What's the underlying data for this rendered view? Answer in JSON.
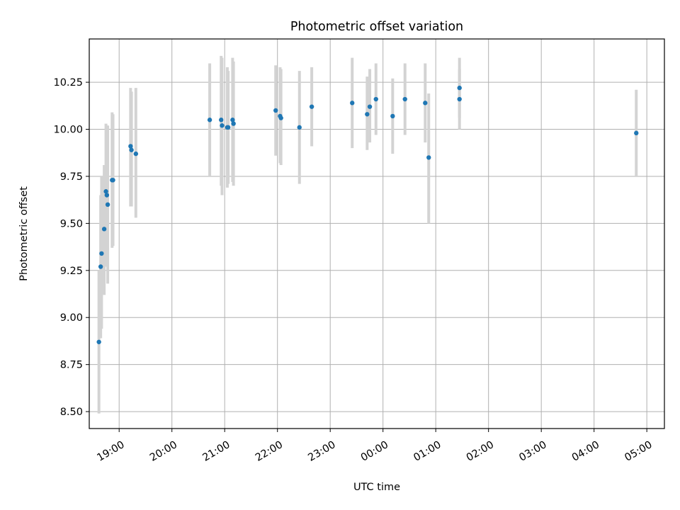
{
  "chart_data": {
    "type": "scatter",
    "title": "Photometric offset variation",
    "xlabel": "UTC time",
    "ylabel": "Photometric offset",
    "xlim": [
      "18:26",
      "05:20"
    ],
    "ylim": [
      8.41,
      10.48
    ],
    "x_ticks": [
      "19:00",
      "20:00",
      "21:00",
      "22:00",
      "23:00",
      "00:00",
      "01:00",
      "02:00",
      "03:00",
      "04:00",
      "05:00"
    ],
    "y_ticks": [
      "8.50",
      "8.75",
      "9.00",
      "9.25",
      "9.50",
      "9.75",
      "10.00",
      "10.25"
    ],
    "grid": true,
    "marker_color": "#1f77b4",
    "errorbar_color": "#d3d3d3",
    "points": [
      {
        "x": "18:37",
        "y": 8.87,
        "ylow": 8.49,
        "yhigh": 9.25
      },
      {
        "x": "18:39",
        "y": 9.27,
        "ylow": 8.89,
        "yhigh": 9.65
      },
      {
        "x": "18:40",
        "y": 9.34,
        "ylow": 8.94,
        "yhigh": 9.75
      },
      {
        "x": "18:43",
        "y": 9.47,
        "ylow": 9.12,
        "yhigh": 9.81
      },
      {
        "x": "18:45",
        "y": 9.67,
        "ylow": 9.31,
        "yhigh": 10.03
      },
      {
        "x": "18:46",
        "y": 9.65,
        "ylow": 9.27,
        "yhigh": 10.02
      },
      {
        "x": "18:47",
        "y": 9.6,
        "ylow": 9.18,
        "yhigh": 10.02
      },
      {
        "x": "18:52",
        "y": 9.73,
        "ylow": 9.37,
        "yhigh": 10.09
      },
      {
        "x": "18:53",
        "y": 9.73,
        "ylow": 9.38,
        "yhigh": 10.08
      },
      {
        "x": "19:13",
        "y": 9.91,
        "ylow": 9.59,
        "yhigh": 10.22
      },
      {
        "x": "19:14",
        "y": 9.89,
        "ylow": 9.59,
        "yhigh": 10.2
      },
      {
        "x": "19:19",
        "y": 9.87,
        "ylow": 9.53,
        "yhigh": 10.22
      },
      {
        "x": "20:43",
        "y": 10.05,
        "ylow": 9.75,
        "yhigh": 10.35
      },
      {
        "x": "20:56",
        "y": 10.05,
        "ylow": 9.7,
        "yhigh": 10.39
      },
      {
        "x": "20:57",
        "y": 10.02,
        "ylow": 9.65,
        "yhigh": 10.38
      },
      {
        "x": "21:03",
        "y": 10.01,
        "ylow": 9.69,
        "yhigh": 10.33
      },
      {
        "x": "21:04",
        "y": 10.01,
        "ylow": 9.71,
        "yhigh": 10.31
      },
      {
        "x": "21:09",
        "y": 10.05,
        "ylow": 9.72,
        "yhigh": 10.38
      },
      {
        "x": "21:10",
        "y": 10.03,
        "ylow": 9.7,
        "yhigh": 10.36
      },
      {
        "x": "21:58",
        "y": 10.1,
        "ylow": 9.86,
        "yhigh": 10.34
      },
      {
        "x": "22:03",
        "y": 10.07,
        "ylow": 9.82,
        "yhigh": 10.33
      },
      {
        "x": "22:04",
        "y": 10.06,
        "ylow": 9.81,
        "yhigh": 10.32
      },
      {
        "x": "22:25",
        "y": 10.01,
        "ylow": 9.71,
        "yhigh": 10.31
      },
      {
        "x": "22:39",
        "y": 10.12,
        "ylow": 9.91,
        "yhigh": 10.33
      },
      {
        "x": "23:25",
        "y": 10.14,
        "ylow": 9.9,
        "yhigh": 10.38
      },
      {
        "x": "23:42",
        "y": 10.08,
        "ylow": 9.89,
        "yhigh": 10.28
      },
      {
        "x": "23:45",
        "y": 10.12,
        "ylow": 9.93,
        "yhigh": 10.32
      },
      {
        "x": "23:52",
        "y": 10.16,
        "ylow": 9.97,
        "yhigh": 10.35
      },
      {
        "x": "00:11",
        "y": 10.07,
        "ylow": 9.87,
        "yhigh": 10.27
      },
      {
        "x": "00:25",
        "y": 10.16,
        "ylow": 9.97,
        "yhigh": 10.35
      },
      {
        "x": "00:48",
        "y": 10.14,
        "ylow": 9.93,
        "yhigh": 10.35
      },
      {
        "x": "00:52",
        "y": 9.85,
        "ylow": 9.5,
        "yhigh": 10.19
      },
      {
        "x": "01:27",
        "y": 10.22,
        "ylow": 10.06,
        "yhigh": 10.38
      },
      {
        "x": "01:27",
        "y": 10.16,
        "ylow": 10.0,
        "yhigh": 10.32
      },
      {
        "x": "04:48",
        "y": 9.98,
        "ylow": 9.75,
        "yhigh": 10.21
      }
    ]
  }
}
